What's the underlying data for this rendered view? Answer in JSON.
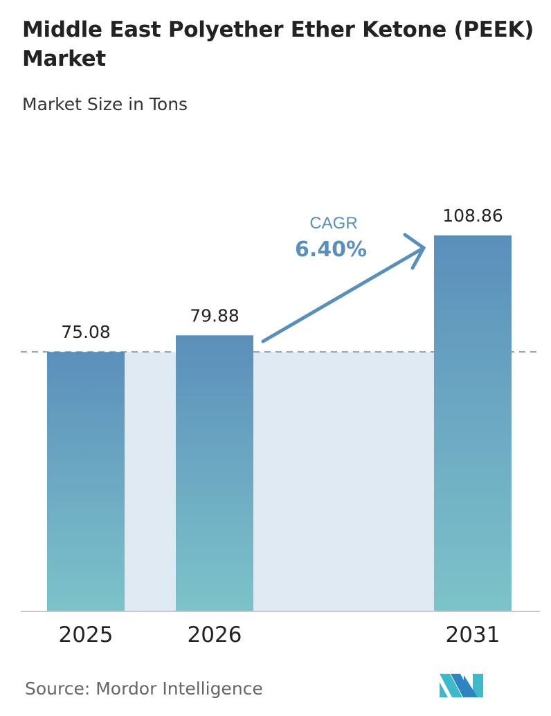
{
  "chart_data": {
    "type": "bar",
    "title": "Middle East Polyether Ether Ketone (PEEK) Market",
    "subtitle": "Market Size in Tons",
    "categories": [
      "2025",
      "2026",
      "2031"
    ],
    "values": [
      75.08,
      79.88,
      108.86
    ],
    "data_labels": [
      "75.08",
      "79.88",
      "108.86"
    ],
    "annotation": {
      "label": "CAGR",
      "value": "6.40%"
    },
    "ylim": [
      0,
      108.86
    ],
    "grid": false,
    "legend": "none",
    "colors": {
      "bar_top": "#5b8fbb",
      "bar_bottom": "#7dc3c9",
      "shade": "#dfe9f2",
      "accent": "#5b8fbb"
    }
  },
  "source": "Source:  Mordor Intelligence",
  "logo": {
    "icon": "mordor-intelligence-logo",
    "text": "Mordor Intelligence"
  }
}
